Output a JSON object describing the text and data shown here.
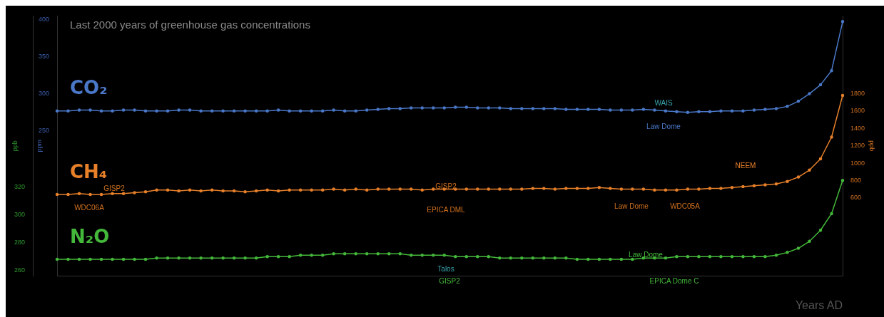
{
  "chart_data": {
    "type": "line",
    "title": "Last 2000 years of greenhouse gas concentrations",
    "xlabel": "Years AD",
    "ylabel": "ppm",
    "y2label": "ppb",
    "y3label": "ppb",
    "categories": [
      null,
      null,
      null,
      null,
      null,
      null,
      null,
      null,
      null,
      null,
      null,
      null,
      null,
      null,
      null,
      null,
      null,
      null,
      null,
      null,
      null,
      null,
      null,
      null,
      null,
      null,
      null,
      null,
      null,
      null,
      null,
      null,
      null,
      null,
      null,
      null,
      null,
      null,
      null,
      null,
      null,
      null,
      null,
      null,
      null,
      null,
      null,
      null,
      null,
      null,
      null,
      null,
      null,
      null,
      null,
      null,
      null,
      null,
      null,
      null,
      null,
      null,
      null,
      null,
      null,
      null,
      null,
      null,
      null,
      null,
      null,
      null
    ],
    "series": [
      {
        "name": "CO₂",
        "color": "#4a78c8",
        "values": [
          277,
          277,
          278,
          278,
          277,
          277,
          278,
          278,
          277,
          277,
          277,
          278,
          278,
          277,
          277,
          277,
          277,
          277,
          277,
          277,
          278,
          277,
          277,
          277,
          277,
          278,
          277,
          277,
          278,
          279,
          280,
          280,
          281,
          281,
          281,
          281,
          282,
          282,
          281,
          281,
          281,
          280,
          280,
          280,
          280,
          280,
          279,
          279,
          279,
          279,
          278,
          278,
          278,
          279,
          278,
          277,
          276,
          275,
          276,
          276,
          277,
          277,
          277,
          278,
          279,
          280,
          283,
          290,
          300,
          312,
          331,
          397
        ]
      },
      {
        "name": "CH₄",
        "color": "#e8802a",
        "axis": "y2",
        "values": [
          640,
          640,
          650,
          640,
          640,
          650,
          650,
          660,
          670,
          690,
          690,
          680,
          690,
          680,
          690,
          680,
          680,
          670,
          680,
          690,
          680,
          690,
          690,
          690,
          690,
          700,
          690,
          700,
          690,
          700,
          700,
          700,
          700,
          690,
          700,
          700,
          700,
          700,
          700,
          700,
          700,
          700,
          700,
          710,
          710,
          700,
          710,
          710,
          710,
          720,
          710,
          700,
          700,
          700,
          690,
          690,
          690,
          700,
          700,
          710,
          710,
          720,
          730,
          740,
          750,
          760,
          790,
          840,
          920,
          1050,
          1300,
          1780
        ]
      },
      {
        "name": "N₂O",
        "color": "#44b83a",
        "axis": "y3",
        "values": [
          268,
          268,
          268,
          268,
          268,
          268,
          268,
          268,
          268,
          269,
          269,
          269,
          269,
          269,
          269,
          269,
          269,
          269,
          269,
          270,
          270,
          270,
          271,
          271,
          271,
          272,
          272,
          272,
          272,
          272,
          272,
          272,
          271,
          271,
          271,
          271,
          270,
          270,
          270,
          270,
          269,
          269,
          269,
          269,
          269,
          269,
          269,
          268,
          268,
          268,
          268,
          268,
          268,
          269,
          269,
          269,
          270,
          270,
          270,
          270,
          270,
          270,
          270,
          270,
          270,
          271,
          273,
          276,
          281,
          289,
          301,
          325
        ]
      }
    ],
    "ylim": [
      55,
      405
    ],
    "yticks": [
      250,
      300,
      350,
      400
    ],
    "y2lim": [
      -300,
      2700
    ],
    "y2ticks": [
      600,
      800,
      1000,
      1200,
      1400,
      1600,
      1800
    ],
    "y3lim": [
      256,
      444
    ],
    "y3ticks": [
      260,
      280,
      300,
      320
    ],
    "marker": "circle",
    "line_style": "solid",
    "annotations": [
      "WAIS",
      "Law Dome",
      "GISP2",
      "WDC06A",
      "GISP2",
      "EPICA DML",
      "Law Dome",
      "WDC05A",
      "NEEM",
      "Law Dome",
      "Talos",
      "GISP2",
      "EPICA Dome C"
    ]
  }
}
